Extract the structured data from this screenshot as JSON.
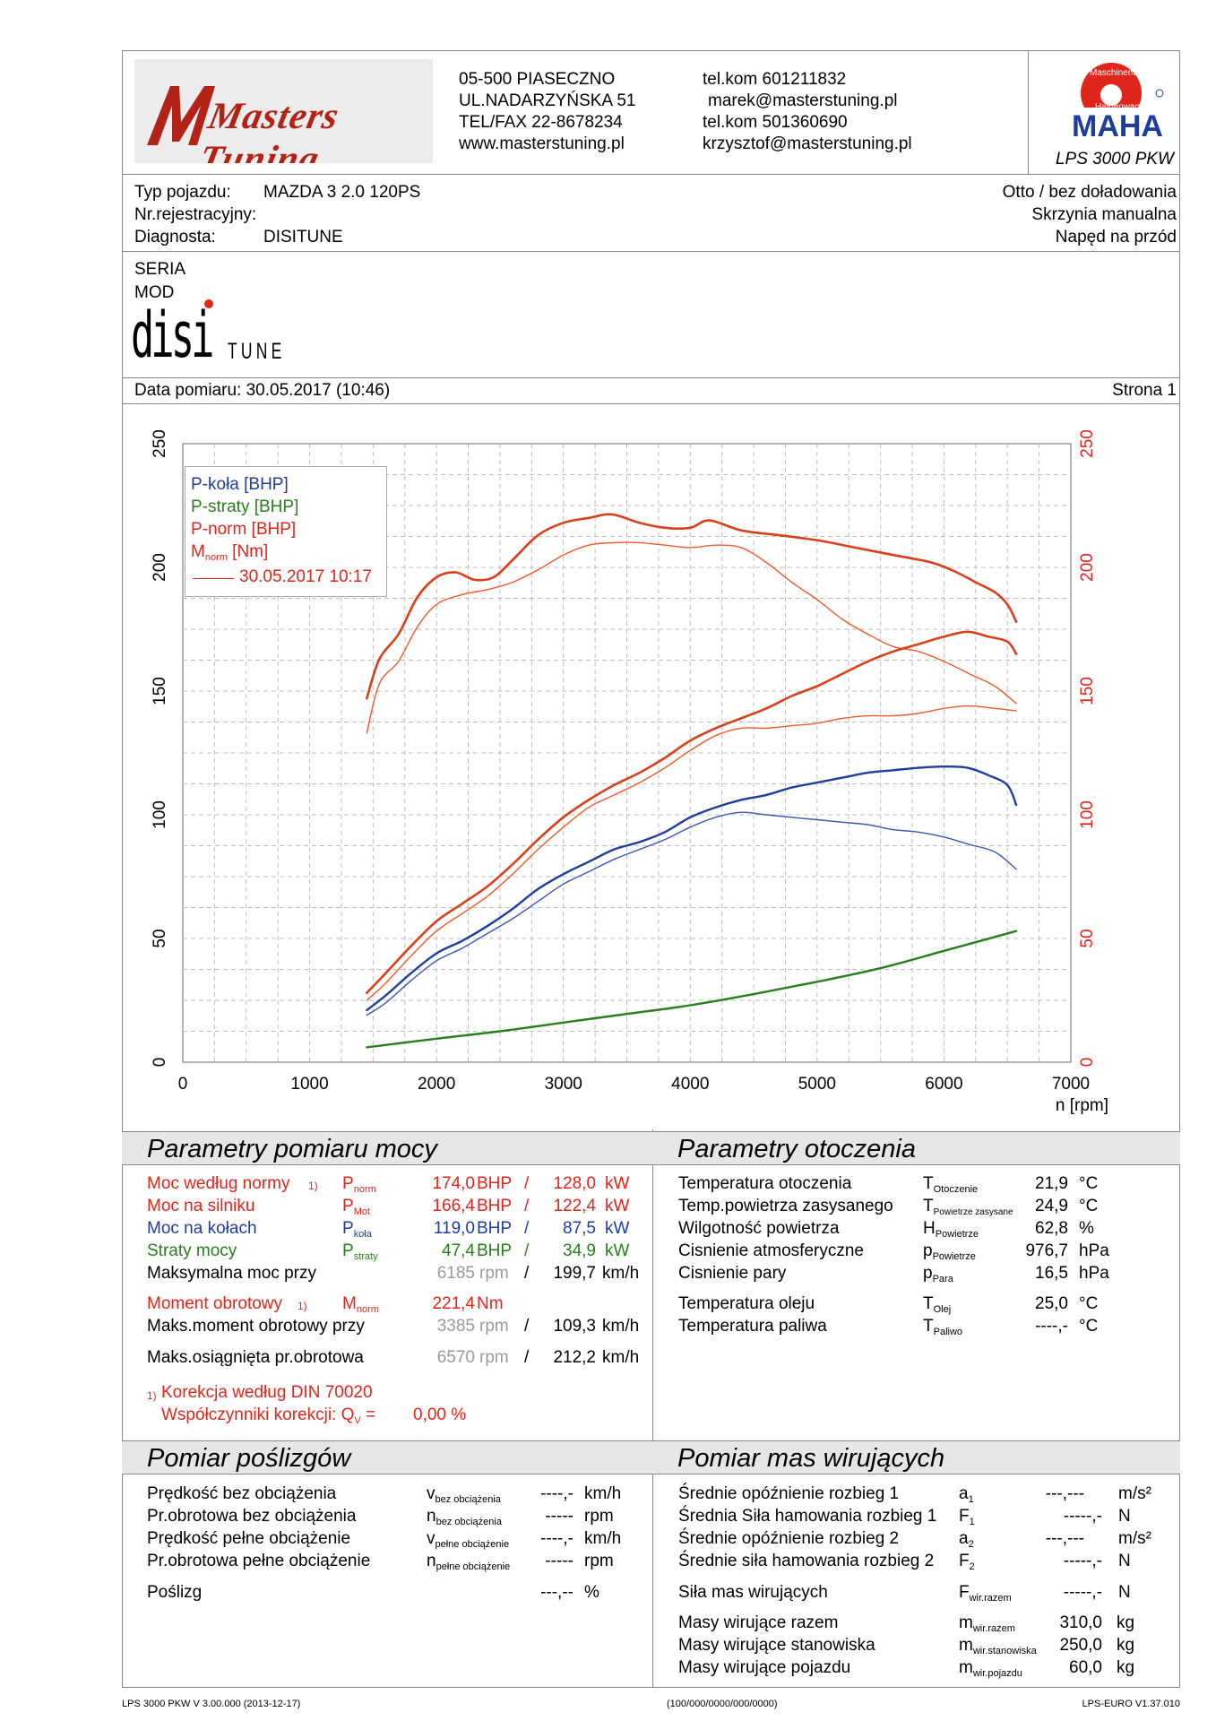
{
  "header": {
    "logo_text": "Masters Tuning",
    "address": [
      "05-500 PIASECZNO",
      "UL.NADARZYŃSKA 51",
      "TEL/FAX 22-8678234",
      "www.masterstuning.pl"
    ],
    "contacts": [
      "tel.kom 601211832",
      "marek@masterstuning.pl",
      "tel.kom 501360690",
      "krzysztof@masterstuning.pl"
    ],
    "maha_badge": {
      "top": "Maschinenbau",
      "bottom": "Haldenwang",
      "brand": "MAHA",
      "model": "LPS 3000 PKW"
    }
  },
  "vehicle": {
    "type_label": "Typ pojazdu:",
    "type_value": "MAZDA 3 2.0 120PS",
    "reg_label": "Nr.rejestracyjny:",
    "diag_label": "Diagnosta:",
    "diag_value": "DISITUNE",
    "engine": "Otto / bez doładowania",
    "gearbox": "Skrzynia manualna",
    "drive": "Napęd na przód"
  },
  "series": {
    "line1": "SERIA",
    "line2": "MOD",
    "brand_big": "disi",
    "brand_small": "TUNE"
  },
  "meta": {
    "date": "Data pomiaru: 30.05.2017 (10:46)",
    "page": "Strona 1"
  },
  "chart_data": {
    "type": "line",
    "x_label": "n [rpm]",
    "x_ticks": [
      0,
      1000,
      2000,
      3000,
      4000,
      5000,
      6000,
      7000
    ],
    "xlim": [
      0,
      7000
    ],
    "y_ticks": [
      0,
      50,
      100,
      150,
      200,
      250
    ],
    "ylim": [
      0,
      250
    ],
    "grid": true,
    "legend_position": "top-left",
    "legend": [
      {
        "label": "P-koła [BHP]",
        "color": "#1f3d9c"
      },
      {
        "label": "P-straty [BHP]",
        "color": "#2a7d1f"
      },
      {
        "label": "P-norm [BHP]",
        "color": "#e0261b"
      },
      {
        "label": "M",
        "sub": "norm",
        "suffix": " [Nm]",
        "color": "#e0261b"
      }
    ],
    "legend_run": "30.05.2017 10:17",
    "series": [
      {
        "name": "M norm [Nm] (current)",
        "color": "#d8401c",
        "width": 2.6,
        "x": [
          1450,
          1550,
          1700,
          1850,
          2000,
          2150,
          2300,
          2450,
          2600,
          2800,
          3000,
          3200,
          3385,
          3600,
          3800,
          4000,
          4150,
          4400,
          4700,
          5000,
          5300,
          5600,
          5900,
          6100,
          6250,
          6400,
          6500,
          6570
        ],
        "y": [
          147,
          163,
          173,
          188,
          196,
          198,
          195,
          196,
          203,
          213,
          218,
          220,
          221.4,
          218,
          216,
          216,
          219,
          215,
          213,
          211,
          208,
          205,
          202,
          198,
          194,
          190,
          185,
          178
        ]
      },
      {
        "name": "M norm [Nm] (30.05.2017 10:17)",
        "color": "#ef5a2c",
        "width": 1.4,
        "x": [
          1450,
          1550,
          1700,
          1850,
          2000,
          2200,
          2400,
          2600,
          2800,
          3000,
          3200,
          3400,
          3600,
          3800,
          4000,
          4200,
          4400,
          4600,
          4800,
          5000,
          5200,
          5400,
          5600,
          5800,
          6000,
          6200,
          6400,
          6570
        ],
        "y": [
          133,
          153,
          162,
          176,
          185,
          189,
          191,
          194,
          199,
          205,
          209,
          210,
          210,
          209,
          208,
          209,
          208,
          202,
          194,
          187,
          179,
          173,
          168,
          166,
          162,
          157,
          152,
          145
        ]
      },
      {
        "name": "P-norm [BHP] (current)",
        "color": "#d8401c",
        "width": 2.6,
        "x": [
          1450,
          1600,
          1800,
          2000,
          2200,
          2400,
          2600,
          2800,
          3000,
          3200,
          3400,
          3600,
          3800,
          4000,
          4200,
          4400,
          4600,
          4800,
          5000,
          5200,
          5400,
          5600,
          5800,
          6000,
          6185,
          6350,
          6500,
          6570
        ],
        "y": [
          28,
          36,
          47,
          57,
          64,
          71,
          80,
          90,
          99,
          106,
          112,
          117,
          123,
          130,
          135,
          139,
          143,
          148,
          152,
          157,
          162,
          166,
          169,
          172,
          174,
          172,
          170,
          165
        ]
      },
      {
        "name": "P-norm [BHP] (30.05.2017 10:17)",
        "color": "#ef5a2c",
        "width": 1.4,
        "x": [
          1450,
          1600,
          1800,
          2000,
          2200,
          2400,
          2600,
          2800,
          3000,
          3200,
          3400,
          3600,
          3800,
          4000,
          4200,
          4400,
          4600,
          4800,
          5000,
          5200,
          5400,
          5600,
          5800,
          6000,
          6200,
          6400,
          6570
        ],
        "y": [
          25,
          32,
          43,
          53,
          60,
          67,
          76,
          86,
          95,
          103,
          108,
          113,
          119,
          126,
          132,
          135,
          135,
          136,
          137,
          139,
          140,
          140,
          141,
          143,
          144,
          143,
          142
        ]
      },
      {
        "name": "P-koła [BHP] (current)",
        "color": "#1f3d9c",
        "width": 2.4,
        "x": [
          1450,
          1600,
          1800,
          2000,
          2200,
          2400,
          2600,
          2800,
          3000,
          3200,
          3400,
          3600,
          3800,
          4000,
          4200,
          4400,
          4600,
          4800,
          5000,
          5200,
          5400,
          5600,
          5800,
          6000,
          6185,
          6350,
          6500,
          6570
        ],
        "y": [
          21,
          27,
          36,
          44,
          49,
          55,
          62,
          70,
          76,
          81,
          86,
          89,
          93,
          99,
          103,
          106,
          108,
          111,
          113,
          115,
          117,
          118,
          119,
          119.5,
          119,
          116,
          112,
          104
        ]
      },
      {
        "name": "P-koła [BHP] (30.05.2017 10:17)",
        "color": "#3a55b0",
        "width": 1.4,
        "x": [
          1450,
          1600,
          1800,
          2000,
          2200,
          2400,
          2600,
          2800,
          3000,
          3200,
          3400,
          3600,
          3800,
          4000,
          4200,
          4400,
          4600,
          4800,
          5000,
          5200,
          5400,
          5600,
          5800,
          6000,
          6200,
          6400,
          6570
        ],
        "y": [
          19,
          24,
          33,
          41,
          46,
          52,
          58,
          65,
          72,
          77,
          82,
          86,
          90,
          95,
          99,
          101,
          100,
          99,
          98,
          97,
          96,
          94,
          93,
          91,
          88,
          85,
          78
        ]
      },
      {
        "name": "P-straty [BHP]",
        "color": "#2a7d1f",
        "width": 2.4,
        "x": [
          1450,
          2000,
          2500,
          3000,
          3500,
          4000,
          4500,
          5000,
          5500,
          6000,
          6570
        ],
        "y": [
          6,
          9.5,
          12.5,
          16,
          19.5,
          23,
          27.5,
          32.5,
          38,
          45,
          53
        ]
      }
    ]
  },
  "power": {
    "title": "Parametry pomiaru mocy",
    "rows": [
      {
        "label": "Moc według normy",
        "note": "1)",
        "sym": "P",
        "sub": "norm",
        "v1": "174,0",
        "u1": "BHP",
        "sep": "/",
        "v2": "128,0",
        "u2": "kW"
      },
      {
        "label": "Moc na silniku",
        "sym": "P",
        "sub": "Mot",
        "v1": "166,4",
        "u1": "BHP",
        "sep": "/",
        "v2": "122,4",
        "u2": "kW"
      },
      {
        "label": "Moc na kołach",
        "sym": "P",
        "sub": "koła",
        "v1": "119,0",
        "u1": "BHP",
        "sep": "/",
        "v2": "87,5",
        "u2": "kW"
      },
      {
        "label": "Straty mocy",
        "sym": "P",
        "sub": "straty",
        "v1": "47,4",
        "u1": "BHP",
        "sep": "/",
        "v2": "34,9",
        "u2": "kW"
      }
    ],
    "max_power": {
      "label": "Maksymalna moc przy",
      "rpm": "6185",
      "rpm_unit": "rpm",
      "sep": "/",
      "speed": "199,7",
      "speed_unit": "km/h"
    },
    "torque": {
      "label": "Moment obrotowy",
      "note": "1)",
      "sym": "M",
      "sub": "norm",
      "value": "221,4",
      "unit": "Nm"
    },
    "max_torque": {
      "label": "Maks.moment obrotowy przy",
      "rpm": "3385",
      "rpm_unit": "rpm",
      "sep": "/",
      "speed": "109,3",
      "speed_unit": "km/h"
    },
    "max_rpm": {
      "label": "Maks.osiągnięta pr.obrotowa",
      "rpm": "6570",
      "rpm_unit": "rpm",
      "sep": "/",
      "speed": "212,2",
      "speed_unit": "km/h"
    },
    "correction": {
      "note": "1)",
      "line1": "Korekcja według DIN 70020",
      "line2": "Współczynniki korekcji: Q",
      "q_sub": "V",
      "q_eq": " =",
      "q_value": "0,00 %"
    }
  },
  "ambient": {
    "title": "Parametry otoczenia",
    "rows": [
      {
        "label": "Temperatura otoczenia",
        "sym": "T",
        "sub": "Otoczenie",
        "value": "21,9",
        "unit": "°C"
      },
      {
        "label": "Temp.powietrza zasysanego",
        "sym": "T",
        "sub": "Powietrze zasysane",
        "value": "24,9",
        "unit": "°C"
      },
      {
        "label": "Wilgotność powietrza",
        "sym": "H",
        "sub": "Powietrze",
        "value": "62,8",
        "unit": "%"
      },
      {
        "label": "Cisnienie atmosferyczne",
        "sym": "p",
        "sub": "Powietrze",
        "value": "976,7",
        "unit": "hPa"
      },
      {
        "label": "Cisnienie pary",
        "sym": "p",
        "sub": "Para",
        "value": "16,5",
        "unit": "hPa"
      }
    ],
    "rows2": [
      {
        "label": "Temperatura oleju",
        "sym": "T",
        "sub": "Olej",
        "value": "25,0",
        "unit": "°C"
      },
      {
        "label": "Temperatura paliwa",
        "sym": "T",
        "sub": "Paliwo",
        "value": "----,-",
        "unit": "°C"
      }
    ]
  },
  "slip": {
    "title": "Pomiar poślizgów",
    "rows": [
      {
        "label": "Prędkość bez obciążenia",
        "sym": "v",
        "sub": "bez obciążenia",
        "value": "----,-",
        "unit": "km/h"
      },
      {
        "label": "Pr.obrotowa bez obciążenia",
        "sym": "n",
        "sub": "bez obciążenia",
        "value": "-----",
        "unit": "rpm"
      },
      {
        "label": "Prędkość pełne obciążenie",
        "sym": "v",
        "sub": "pełne obciążenie",
        "value": "----,-",
        "unit": "km/h"
      },
      {
        "label": "Pr.obrotowa pełne obciążenie",
        "sym": "n",
        "sub": "pełne obciążenie",
        "value": "-----",
        "unit": "rpm"
      }
    ],
    "slip_row": {
      "label": "Poślizg",
      "value": "---,--",
      "unit": "%"
    }
  },
  "inertia": {
    "title": "Pomiar mas wirujących",
    "rows": [
      {
        "label": "Średnie opóźnienie rozbieg 1",
        "sym": "a",
        "sub": "1",
        "value": "---,---",
        "unit": "m/s²"
      },
      {
        "label": "Średnia Siła hamowania rozbieg 1",
        "sym": "F",
        "sub": "1",
        "value": "-----,-",
        "unit": "N"
      },
      {
        "label": "Średnie opóźnienie rozbieg 2",
        "sym": "a",
        "sub": "2",
        "value": "---,---",
        "unit": "m/s²"
      },
      {
        "label": "Średnie siła hamowania rozbieg 2",
        "sym": "F",
        "sub": "2",
        "value": "-----,-",
        "unit": "N"
      }
    ],
    "force_row": {
      "label": "Siła mas wirujących",
      "sym": "F",
      "sub": "wir.razem",
      "value": "-----,-",
      "unit": "N"
    },
    "mass_rows": [
      {
        "label": "Masy wirujące razem",
        "sym": "m",
        "sub": "wir.razem",
        "value": "310,0",
        "unit": "kg"
      },
      {
        "label": "Masy wirujące stanowiska",
        "sym": "m",
        "sub": "wir.stanowiska",
        "value": "250,0",
        "unit": "kg"
      },
      {
        "label": "Masy wirujące pojazdu",
        "sym": "m",
        "sub": "wir.pojazdu",
        "value": "60,0",
        "unit": "kg"
      }
    ]
  },
  "footer": {
    "left": "LPS 3000 PKW V 3.00.000 (2013-12-17)",
    "center": "(100/000/0000/000/0000)",
    "right": "LPS-EURO V1.37.010"
  },
  "colors": {
    "red": "#e0261b",
    "blue": "#1f3d9c",
    "green": "#2a7d1f",
    "grey": "#9a9a9a",
    "header_bg": "#e6e6e6"
  }
}
